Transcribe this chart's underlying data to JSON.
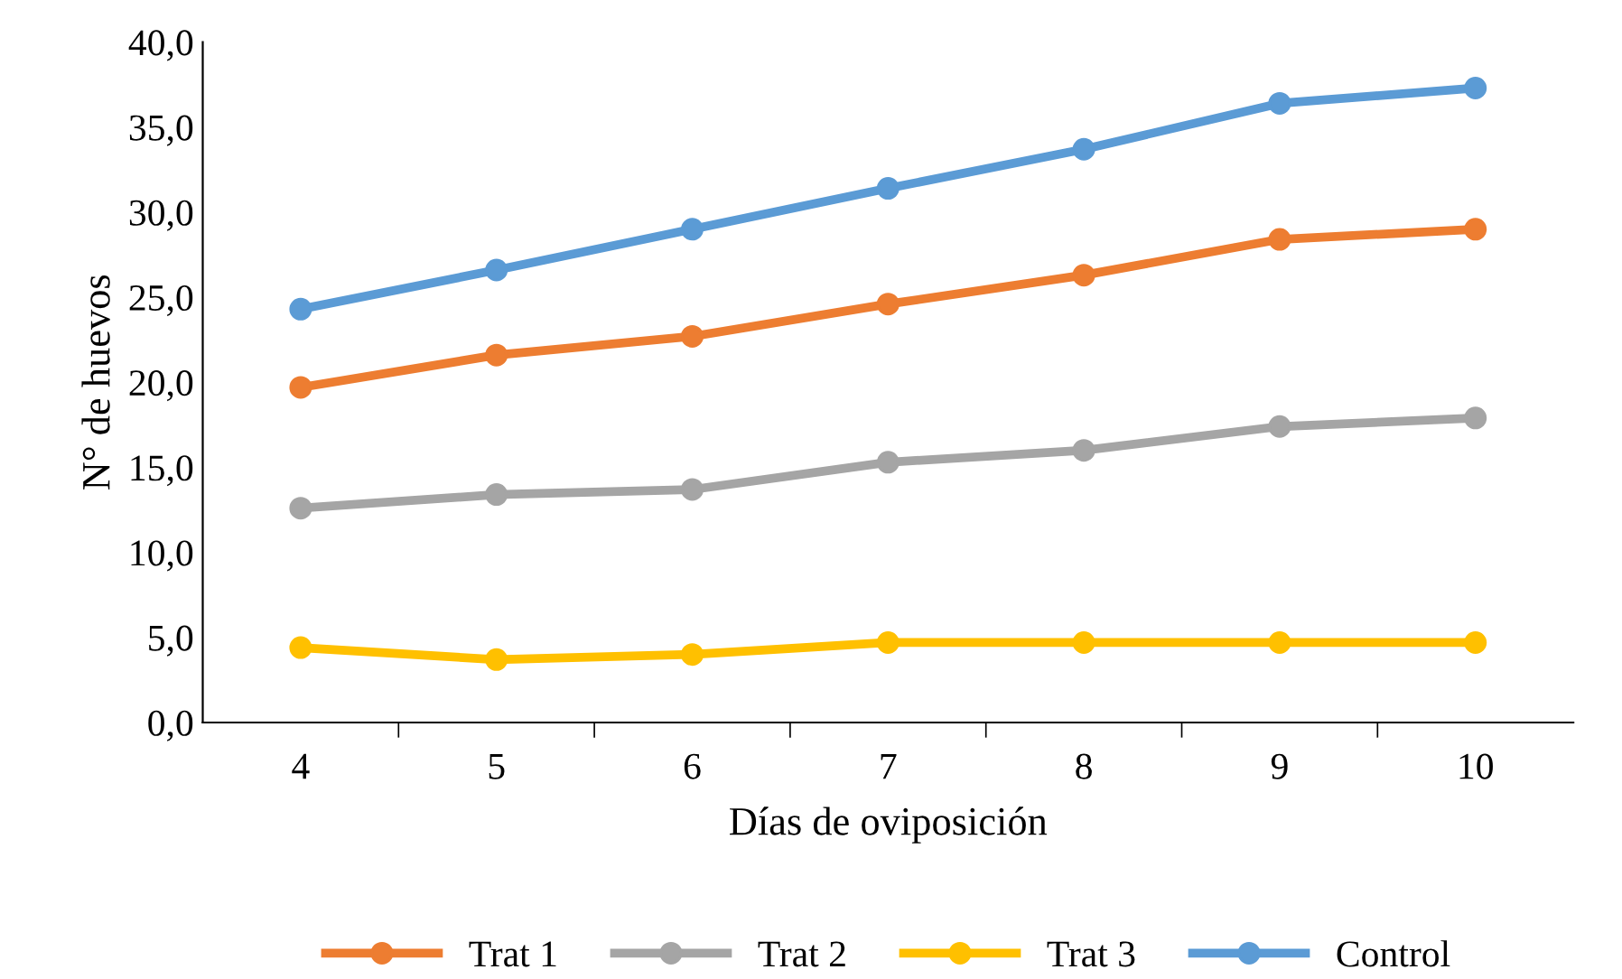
{
  "chart_data": {
    "type": "line",
    "xlabel": "Días de oviposición",
    "ylabel": "N° de huevos",
    "categories": [
      "4",
      "5",
      "6",
      "7",
      "8",
      "9",
      "10"
    ],
    "series": [
      {
        "name": "Trat 1",
        "color": "#ed7d31",
        "values": [
          19.7,
          21.6,
          22.7,
          24.6,
          26.3,
          28.4,
          29.0
        ]
      },
      {
        "name": "Trat 2",
        "color": "#a5a5a5",
        "values": [
          12.6,
          13.4,
          13.7,
          15.3,
          16.0,
          17.4,
          17.9
        ]
      },
      {
        "name": "Trat 3",
        "color": "#ffc000",
        "values": [
          4.4,
          3.7,
          4.0,
          4.7,
          4.7,
          4.7,
          4.7
        ]
      },
      {
        "name": "Control",
        "color": "#5b9bd5",
        "values": [
          24.3,
          26.6,
          29.0,
          31.4,
          33.7,
          36.4,
          37.3
        ]
      }
    ],
    "ylim": [
      0,
      40
    ],
    "yticks": [
      {
        "value": 0,
        "label": "0,0"
      },
      {
        "value": 5,
        "label": "5,0"
      },
      {
        "value": 10,
        "label": "10,0"
      },
      {
        "value": 15,
        "label": "15,0"
      },
      {
        "value": 20,
        "label": "20,0"
      },
      {
        "value": 25,
        "label": "25,0"
      },
      {
        "value": 30,
        "label": "30,0"
      },
      {
        "value": 35,
        "label": "35,0"
      },
      {
        "value": 40,
        "label": "40,0"
      }
    ],
    "grid": false,
    "legend": "bottom",
    "marker": "circle",
    "line_style": "solid"
  }
}
